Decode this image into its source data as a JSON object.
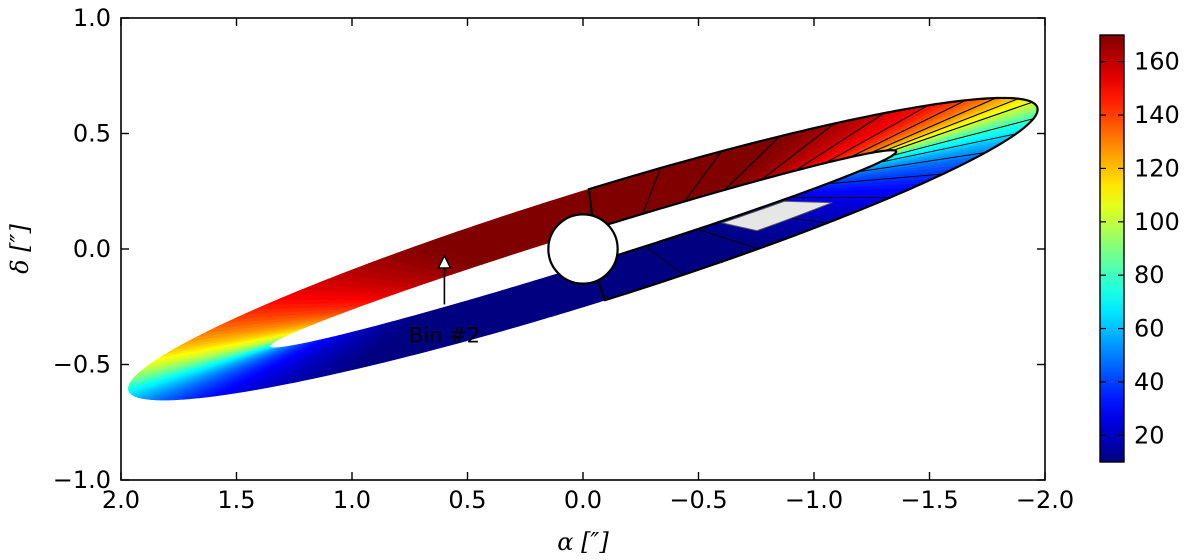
{
  "chart_data": {
    "type": "scatter",
    "title": "",
    "xlabel": "α [″]",
    "ylabel": "δ [″]",
    "xlim": [
      2.0,
      -2.0
    ],
    "ylim": [
      -1.0,
      1.0
    ],
    "x_ticks": [
      2.0,
      1.5,
      1.0,
      0.5,
      0.0,
      -0.5,
      -1.0,
      -1.5,
      -2.0
    ],
    "x_tick_labels": [
      "2.0",
      "1.5",
      "1.0",
      "0.5",
      "0.0",
      "−0.5",
      "−1.0",
      "−1.5",
      "−2.0"
    ],
    "y_ticks": [
      1.0,
      0.5,
      0.0,
      -0.5,
      -1.0
    ],
    "y_tick_labels": [
      "1.0",
      "0.5",
      "0.0",
      "−0.5",
      "−1.0"
    ],
    "grid": false,
    "disk": {
      "outer_semi_major": 2.06,
      "outer_semi_minor": 0.24,
      "inner_semi_major": 1.42,
      "inner_semi_minor": 0.07,
      "position_angle_deg": -17.3,
      "value_range": [
        10,
        170
      ],
      "value_field": "azimuth"
    },
    "mask_circle": {
      "x": 0.0,
      "y": 0.0,
      "radius": 0.15
    },
    "highlighted_bin": {
      "label": "Bin #2",
      "x": 0.6,
      "y": 0.07
    },
    "annotations": [
      {
        "text": "Bin #2",
        "arrow_tip": [
          0.6,
          -0.03
        ],
        "arrow_tail": [
          0.6,
          -0.24
        ],
        "text_pos": [
          0.6,
          -0.37
        ]
      }
    ],
    "colorbar": {
      "colormap": "jet",
      "range": [
        10,
        170
      ],
      "ticks": [
        20,
        40,
        60,
        80,
        100,
        120,
        140,
        160
      ],
      "tick_labels": [
        "20",
        "40",
        "60",
        "80",
        "100",
        "120",
        "140",
        "160"
      ],
      "placement": "right"
    }
  }
}
